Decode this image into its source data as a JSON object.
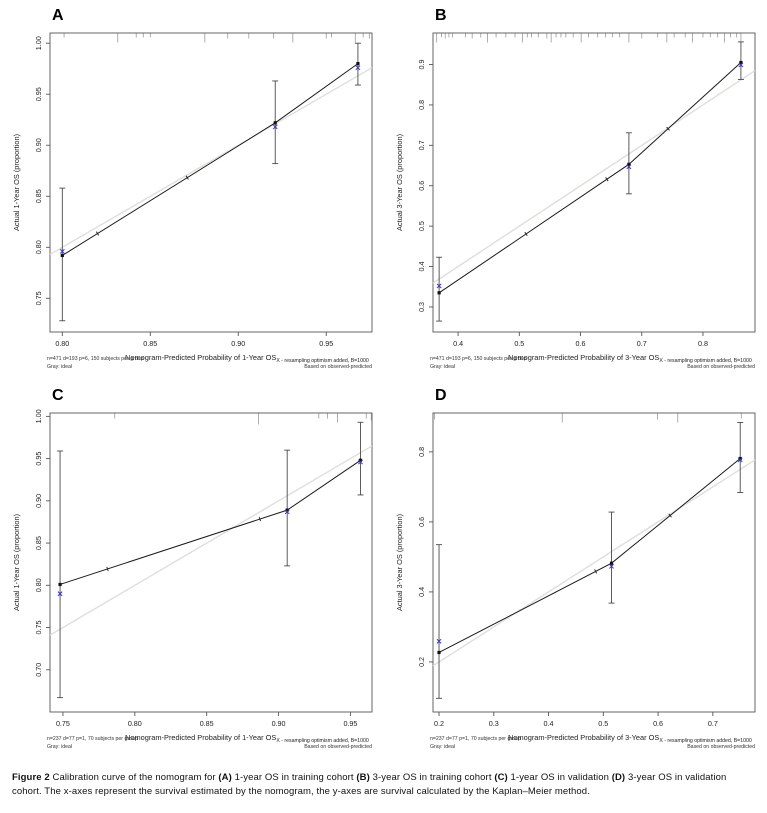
{
  "page": {
    "background": "#ffffff"
  },
  "colors": {
    "line": "#1a1a1a",
    "marker": "#111111",
    "ideal_line": "#e0ded8",
    "error_bar": "#4a4a4a",
    "corrected_x": "#3b3bc0",
    "frame": "#555555",
    "rug": "#999999",
    "tick_text": "#222222",
    "small_text": "#333333"
  },
  "caption": {
    "segments": [
      {
        "t": "Figure 2 ",
        "b": true
      },
      {
        "t": "Calibration curve of the nomogram for ",
        "b": false
      },
      {
        "t": "(A)",
        "b": true
      },
      {
        "t": " 1-year OS in training cohort ",
        "b": false
      },
      {
        "t": "(B)",
        "b": true
      },
      {
        "t": " 3-year OS in training cohort ",
        "b": false
      },
      {
        "t": "(C)",
        "b": true
      },
      {
        "t": " 1-year OS in validation ",
        "b": false
      },
      {
        "t": "(D)",
        "b": true
      },
      {
        "t": " 3-year OS in validation cohort. The x-axes represent the survival estimated by the nomogram, the y-axes are survival calculated by the Kaplan–Meier method.",
        "b": false
      }
    ]
  },
  "chart_data": [
    {
      "panel": "A",
      "type": "line",
      "title": "Calibration curve, 1-year OS, training cohort",
      "xlabel": "Nomogram-Predicted Probability of 1-Year OS",
      "xlabel_subscript": "X - resampling optimism added, B=1000",
      "ylabel": "Actual 1-Year OS (proportion)",
      "footnote_left": "n=471 d=193 p=6, 150 subjects per group",
      "footnote_left2": "Gray: ideal",
      "footnote_right2": "Based on observed-predicted",
      "xlim": [
        0.793,
        0.976
      ],
      "ylim": [
        0.717,
        1.01
      ],
      "xticks": [
        "0.80",
        "0.85",
        "0.90",
        "0.95"
      ],
      "yticks": [
        "0.75",
        "0.80",
        "0.85",
        "0.90",
        "0.95",
        "1.00"
      ],
      "ideal": "identity",
      "points": [
        {
          "x": 0.8,
          "y_observed": 0.792,
          "y_corrected": 0.796,
          "ci_low": 0.728,
          "ci_high": 0.858
        },
        {
          "x": 0.921,
          "y_observed": 0.922,
          "y_corrected": 0.918,
          "ci_low": 0.882,
          "ci_high": 0.963
        },
        {
          "x": 0.968,
          "y_observed": 0.98,
          "y_corrected": 0.976,
          "ci_low": 0.959,
          "ci_high": 1.0
        }
      ],
      "line_tick_x": [
        0.82,
        0.871
      ],
      "rug_x": [
        [
          0.801,
          4
        ],
        [
          0.8315,
          9
        ],
        [
          0.842,
          4
        ],
        [
          0.846,
          4
        ],
        [
          0.85,
          4
        ],
        [
          0.881,
          9
        ],
        [
          0.894,
          5
        ],
        [
          0.906,
          5
        ],
        [
          0.92,
          5
        ],
        [
          0.931,
          9
        ],
        [
          0.95,
          5
        ],
        [
          0.953,
          4
        ],
        [
          0.9665,
          9
        ],
        [
          0.971,
          4
        ],
        [
          0.9745,
          5
        ]
      ]
    },
    {
      "panel": "B",
      "type": "line",
      "title": "Calibration curve, 3-year OS, training cohort",
      "xlabel": "Nomogram-Predicted Probability of 3-Year OS",
      "xlabel_subscript": "X - resampling optimism added, B=1000",
      "ylabel": "Actual 3-Year OS (proportion)",
      "footnote_left": "n=471 d=193 p=6, 150 subjects per group",
      "footnote_left2": "Gray: ideal",
      "footnote_right2": "Based on observed-predicted",
      "xlim": [
        0.359,
        0.885
      ],
      "ylim": [
        0.238,
        0.978
      ],
      "xticks": [
        "0.4",
        "0.5",
        "0.6",
        "0.7",
        "0.8"
      ],
      "yticks": [
        "0.3",
        "0.4",
        "0.5",
        "0.6",
        "0.7",
        "0.8",
        "0.9"
      ],
      "ideal": "identity",
      "points": [
        {
          "x": 0.369,
          "y_observed": 0.335,
          "y_corrected": 0.352,
          "ci_low": 0.265,
          "ci_high": 0.423
        },
        {
          "x": 0.679,
          "y_observed": 0.653,
          "y_corrected": 0.647,
          "ci_low": 0.58,
          "ci_high": 0.731
        },
        {
          "x": 0.862,
          "y_observed": 0.905,
          "y_corrected": 0.899,
          "ci_low": 0.863,
          "ci_high": 0.956
        }
      ],
      "line_tick_x": [
        0.511,
        0.643,
        0.743
      ],
      "rug_x": [
        [
          0.365,
          9
        ],
        [
          0.373,
          4
        ],
        [
          0.379,
          5
        ],
        [
          0.385,
          4
        ],
        [
          0.391,
          4
        ],
        [
          0.412,
          4
        ],
        [
          0.423,
          5
        ],
        [
          0.437,
          4
        ],
        [
          0.448,
          9
        ],
        [
          0.462,
          4
        ],
        [
          0.478,
          4
        ],
        [
          0.493,
          4
        ],
        [
          0.505,
          9
        ],
        [
          0.513,
          4
        ],
        [
          0.52,
          4
        ],
        [
          0.531,
          4
        ],
        [
          0.545,
          5
        ],
        [
          0.552,
          9
        ],
        [
          0.56,
          4
        ],
        [
          0.568,
          4
        ],
        [
          0.576,
          4
        ],
        [
          0.588,
          4
        ],
        [
          0.601,
          9
        ],
        [
          0.613,
          4
        ],
        [
          0.628,
          4
        ],
        [
          0.641,
          4
        ],
        [
          0.652,
          4
        ],
        [
          0.664,
          4
        ],
        [
          0.679,
          9
        ],
        [
          0.7,
          5
        ],
        [
          0.726,
          4
        ],
        [
          0.741,
          9
        ],
        [
          0.753,
          4
        ],
        [
          0.771,
          4
        ],
        [
          0.783,
          9
        ],
        [
          0.8,
          4
        ],
        [
          0.812,
          4
        ],
        [
          0.824,
          4
        ],
        [
          0.835,
          9
        ],
        [
          0.845,
          4
        ],
        [
          0.855,
          4
        ],
        [
          0.862,
          9
        ]
      ]
    },
    {
      "panel": "C",
      "type": "line",
      "title": "Calibration curve, 1-year OS, validation cohort",
      "xlabel": "Nomogram-Predicted Probability of 1-Year OS",
      "xlabel_subscript": "X - resampling optimism added, B=1000",
      "ylabel": "Actual 1-Year OS (proportion)",
      "footnote_left": "n=237 d=77 p=1, 70 subjects per group",
      "footnote_left2": "Gray: ideal",
      "footnote_right2": "Based on observed-predicted",
      "xlim": [
        0.741,
        0.965
      ],
      "ylim": [
        0.65,
        1.004
      ],
      "xticks": [
        "0.75",
        "0.80",
        "0.85",
        "0.90",
        "0.95"
      ],
      "yticks": [
        "0.70",
        "0.75",
        "0.80",
        "0.85",
        "0.90",
        "0.95",
        "1.00"
      ],
      "ideal": "identity",
      "points": [
        {
          "x": 0.748,
          "y_observed": 0.801,
          "y_corrected": 0.79,
          "ci_low": 0.667,
          "ci_high": 0.959
        },
        {
          "x": 0.906,
          "y_observed": 0.889,
          "y_corrected": 0.887,
          "ci_low": 0.823,
          "ci_high": 0.96
        },
        {
          "x": 0.957,
          "y_observed": 0.948,
          "y_corrected": 0.946,
          "ci_low": 0.907,
          "ci_high": 0.993
        }
      ],
      "line_tick_x": [
        0.781,
        0.887
      ],
      "rug_x": [
        [
          0.786,
          5
        ],
        [
          0.886,
          11
        ],
        [
          0.928,
          5
        ],
        [
          0.934,
          5
        ],
        [
          0.941,
          9
        ],
        [
          0.961,
          5
        ],
        [
          0.9645,
          7
        ]
      ]
    },
    {
      "panel": "D",
      "type": "line",
      "title": "Calibration curve, 3-year OS, validation cohort",
      "xlabel": "Nomogram-Predicted Probability of 3-Year OS",
      "xlabel_subscript": "X - resampling optimism added, B=1000",
      "ylabel": "Actual 3-Year OS (proportion)",
      "footnote_left": "n=237 d=77 p=1, 70 subjects per group",
      "footnote_left2": "Gray: ideal",
      "footnote_right2": "Based on observed-predicted",
      "xlim": [
        0.189,
        0.777
      ],
      "ylim": [
        0.057,
        0.911
      ],
      "xticks": [
        "0.2",
        "0.3",
        "0.4",
        "0.5",
        "0.6",
        "0.7"
      ],
      "yticks": [
        "0.2",
        "0.4",
        "0.6",
        "0.8"
      ],
      "ideal": "identity",
      "points": [
        {
          "x": 0.2,
          "y_observed": 0.227,
          "y_corrected": 0.259,
          "ci_low": 0.096,
          "ci_high": 0.535
        },
        {
          "x": 0.515,
          "y_observed": 0.482,
          "y_corrected": 0.473,
          "ci_low": 0.368,
          "ci_high": 0.628
        },
        {
          "x": 0.75,
          "y_observed": 0.781,
          "y_corrected": 0.777,
          "ci_low": 0.684,
          "ci_high": 0.884
        }
      ],
      "line_tick_x": [
        0.486,
        0.622
      ],
      "rug_x": [
        [
          0.192,
          6
        ],
        [
          0.425,
          9
        ],
        [
          0.599,
          6
        ],
        [
          0.636,
          9
        ],
        [
          0.752,
          5
        ]
      ]
    }
  ]
}
